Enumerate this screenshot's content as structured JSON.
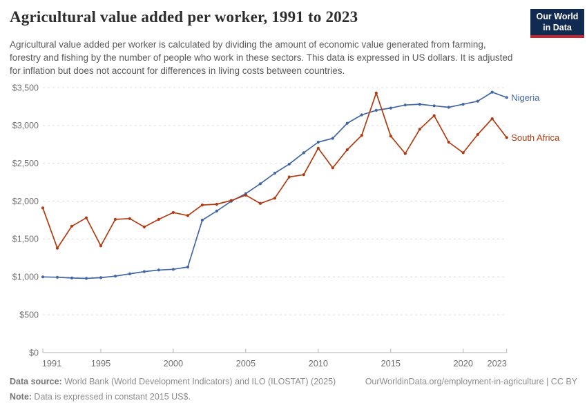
{
  "header": {
    "title": "Agricultural value added per worker, 1991 to 2023",
    "subtitle": "Agricultural value added per worker is calculated by dividing the amount of economic value generated from farming, forestry and fishing by the number of people who work in these sectors. This data is expressed in US dollars. It is adjusted for inflation but does not account for differences in living costs between countries.",
    "logo_line1": "Our World",
    "logo_line2": "in Data"
  },
  "chart_data": {
    "type": "line",
    "title": "Agricultural value added per worker, 1991 to 2023",
    "ylabel": "",
    "xlabel": "",
    "grid": "horizontal-dashed",
    "legend_position": "line-end-labels",
    "ylim": [
      0,
      3500
    ],
    "ytick_step": 500,
    "ytick_prefix": "$",
    "x": [
      1991,
      1992,
      1993,
      1994,
      1995,
      1996,
      1997,
      1998,
      1999,
      2000,
      2001,
      2002,
      2003,
      2004,
      2005,
      2006,
      2007,
      2008,
      2009,
      2010,
      2011,
      2012,
      2013,
      2014,
      2015,
      2016,
      2017,
      2018,
      2019,
      2020,
      2021,
      2022,
      2023
    ],
    "xticks": [
      1991,
      1995,
      2000,
      2005,
      2010,
      2015,
      2020,
      2023
    ],
    "series": [
      {
        "name": "Nigeria",
        "color": "#4367a4",
        "values": [
          1000,
          995,
          985,
          980,
          990,
          1010,
          1040,
          1070,
          1090,
          1100,
          1130,
          1750,
          1870,
          2000,
          2100,
          2230,
          2370,
          2490,
          2640,
          2780,
          2830,
          3030,
          3140,
          3200,
          3230,
          3270,
          3280,
          3260,
          3240,
          3280,
          3320,
          3440,
          3370
        ]
      },
      {
        "name": "South Africa",
        "color": "#b23a10",
        "values": [
          1910,
          1380,
          1670,
          1780,
          1410,
          1760,
          1770,
          1660,
          1760,
          1850,
          1810,
          1950,
          1960,
          2010,
          2080,
          1970,
          2040,
          2320,
          2350,
          2700,
          2440,
          2680,
          2870,
          3430,
          2860,
          2630,
          2950,
          3130,
          2780,
          2640,
          2880,
          3090,
          2840
        ]
      }
    ]
  },
  "footer": {
    "datasource_label": "Data source:",
    "datasource_text": " World Bank (World Development Indicators) and ILO (ILOSTAT) (2025)",
    "citation_text": "OurWorldinData.org/employment-in-agriculture | CC BY",
    "note_label": "Note:",
    "note_text": " Data is expressed in constant 2015 US$."
  }
}
